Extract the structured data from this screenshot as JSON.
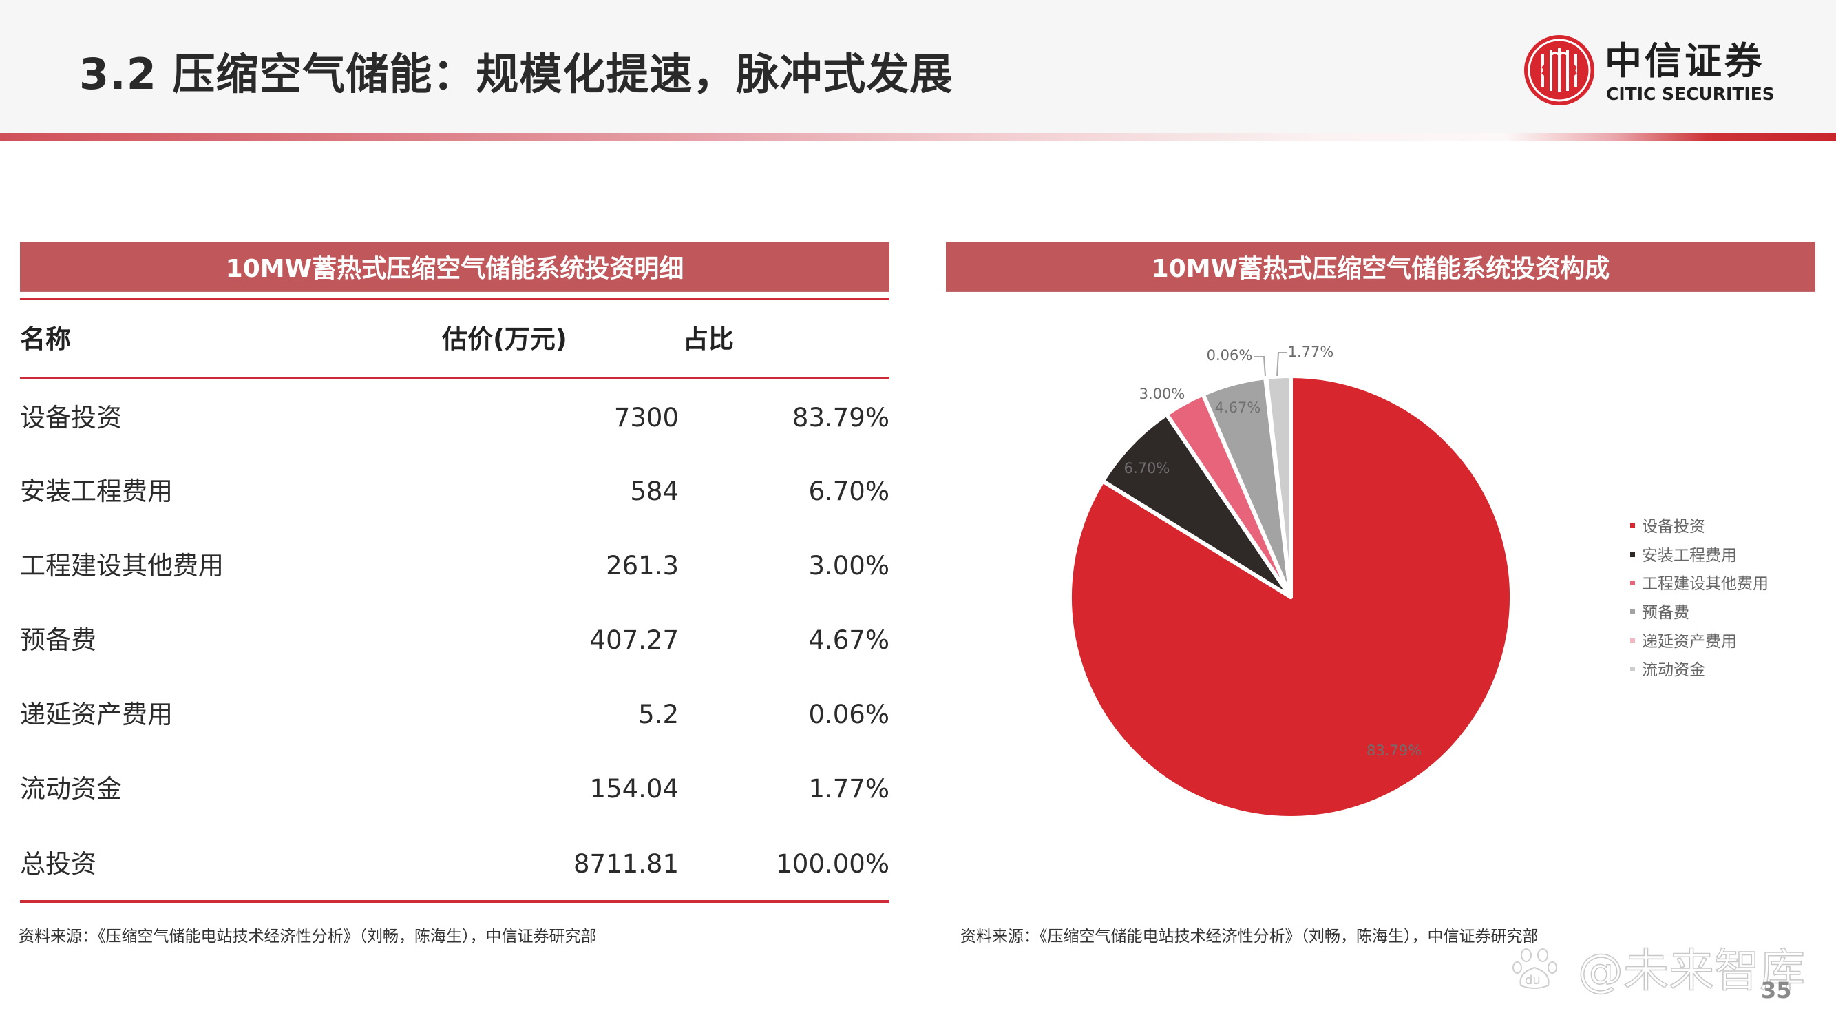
{
  "header": {
    "title": "3.2 压缩空气储能：规模化提速，脉冲式发展",
    "logo": {
      "name_cn": "中信证券",
      "name_en": "CITIC SECURITIES",
      "icon": "citic-logo-icon",
      "color": "#d7262d"
    }
  },
  "left_panel": {
    "title": "10MW蓄热式压缩空气储能系统投资明细",
    "table": {
      "columns": [
        "名称",
        "估价(万元)",
        "占比"
      ],
      "rows": [
        {
          "name": "设备投资",
          "price": "7300",
          "share": "83.79%"
        },
        {
          "name": "安装工程费用",
          "price": "584",
          "share": "6.70%"
        },
        {
          "name": "工程建设其他费用",
          "price": "261.3",
          "share": "3.00%"
        },
        {
          "name": "预备费",
          "price": "407.27",
          "share": "4.67%"
        },
        {
          "name": "递延资产费用",
          "price": "5.2",
          "share": "0.06%"
        },
        {
          "name": "流动资金",
          "price": "154.04",
          "share": "1.77%"
        },
        {
          "name": "总投资",
          "price": "8711.81",
          "share": "100.00%"
        }
      ]
    },
    "source": "资料来源：《压缩空气储能电站技术经济性分析》（刘畅，陈海生），中信证券研究部"
  },
  "right_panel": {
    "title": "10MW蓄热式压缩空气储能系统投资构成",
    "source": "资料来源：《压缩空气储能电站技术经济性分析》（刘畅，陈海生），中信证券研究部"
  },
  "chart_data": {
    "type": "pie",
    "title": "10MW蓄热式压缩空气储能系统投资构成",
    "categories": [
      "设备投资",
      "安装工程费用",
      "工程建设其他费用",
      "预备费",
      "递延资产费用",
      "流动资金"
    ],
    "values": [
      83.79,
      6.7,
      3.0,
      4.67,
      0.06,
      1.77
    ],
    "labels": [
      "83.79%",
      "6.70%",
      "3.00%",
      "4.67%",
      "0.06%",
      "1.77%"
    ],
    "colors": [
      "#d7262d",
      "#2f2a28",
      "#e8647a",
      "#a3a3a3",
      "#f2b8c2",
      "#cdcdcd"
    ],
    "legend_position": "right",
    "start_angle": "12 o'clock, clockwise"
  },
  "footer": {
    "watermark": "@未来智库",
    "page_number": "35"
  }
}
